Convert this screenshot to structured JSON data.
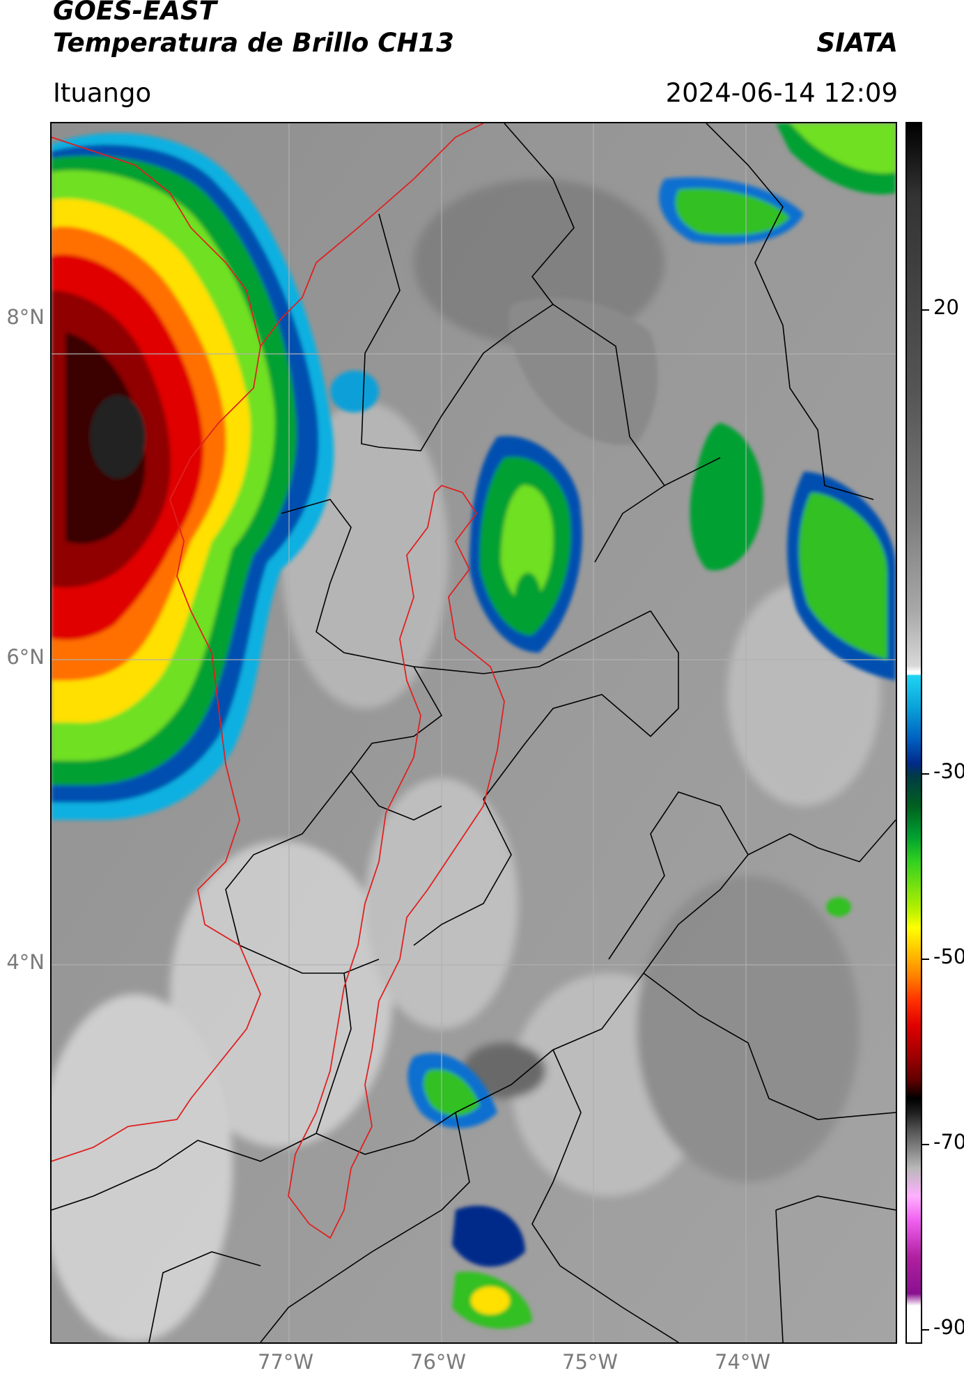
{
  "header": {
    "title_line1": "GOES-EAST",
    "title_line2": "Temperatura de Brillo CH13",
    "organization": "SIATA",
    "location": "Ituango",
    "timestamp": "2024-06-14 12:09"
  },
  "map": {
    "latitude_labels": [
      "8°N",
      "6°N",
      "4°N"
    ],
    "longitude_labels": [
      "77°W",
      "76°W",
      "75°W",
      "74°W"
    ],
    "grid": true,
    "boundary_colors": {
      "departments": "#000000",
      "coast_and_basin": "#e02020"
    }
  },
  "colorbar": {
    "tick_labels": [
      "20",
      "-30",
      "-50",
      "-70",
      "-90"
    ],
    "colors": {
      "warm_clear": "#7a7a7a",
      "cold_cloud_cyan": "#1ed4f2",
      "deep_convection_green": "#30d020",
      "very_cold_yellow": "#ffff00",
      "extreme_red": "#e00000",
      "coldest_magenta": "#b020a0"
    }
  }
}
